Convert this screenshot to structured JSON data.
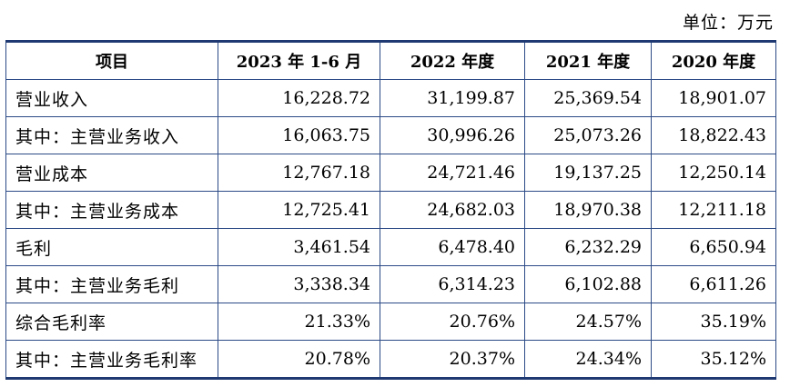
{
  "unit": "单位：万元",
  "table": {
    "headers": [
      "项目",
      "2023 年 1-6 月",
      "2022 年度",
      "2021 年度",
      "2020 年度"
    ],
    "rows": [
      {
        "label": "营业收入",
        "values": [
          "16,228.72",
          "31,199.87",
          "25,369.54",
          "18,901.07"
        ]
      },
      {
        "label": "其中：主营业务收入",
        "values": [
          "16,063.75",
          "30,996.26",
          "25,073.26",
          "18,822.43"
        ]
      },
      {
        "label": "营业成本",
        "values": [
          "12,767.18",
          "24,721.46",
          "19,137.25",
          "12,250.14"
        ]
      },
      {
        "label": "其中：主营业务成本",
        "values": [
          "12,725.41",
          "24,682.03",
          "18,970.38",
          "12,211.18"
        ]
      },
      {
        "label": "毛利",
        "values": [
          "3,461.54",
          "6,478.40",
          "6,232.29",
          "6,650.94"
        ]
      },
      {
        "label": "其中：主营业务毛利",
        "values": [
          "3,338.34",
          "6,314.23",
          "6,102.88",
          "6,611.26"
        ]
      },
      {
        "label": "综合毛利率",
        "values": [
          "21.33%",
          "20.76%",
          "24.57%",
          "35.19%"
        ]
      },
      {
        "label": "其中：主营业务毛利率",
        "values": [
          "20.78%",
          "20.37%",
          "24.34%",
          "35.12%"
        ]
      }
    ]
  },
  "colors": {
    "border": "#2c4a86",
    "outer_border": "#1f3a72",
    "text": "#000000",
    "background": "#ffffff"
  }
}
